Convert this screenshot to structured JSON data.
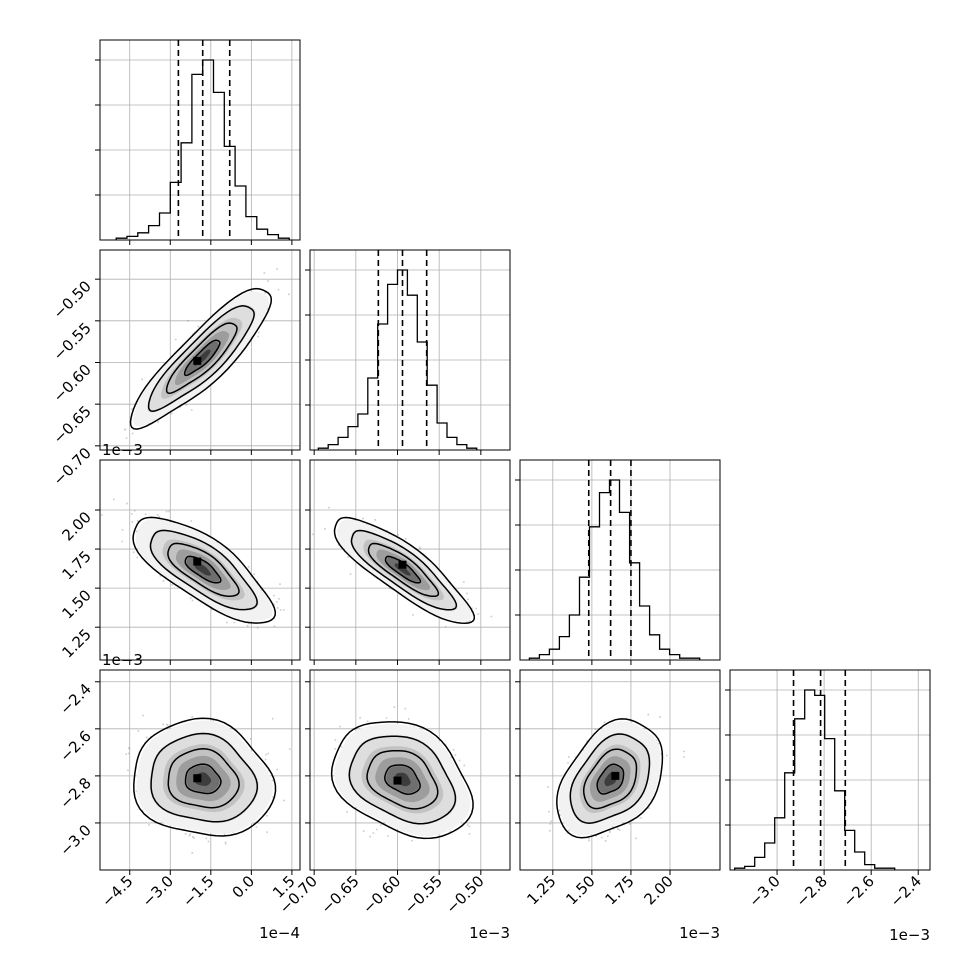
{
  "chart_data": {
    "type": "corner",
    "grid": true,
    "parameters": [
      {
        "range": [
          -5.6,
          1.8
        ],
        "ticks": [
          -4.5,
          -3.0,
          -1.5,
          0.0,
          1.5
        ],
        "tick_labels": [
          "−4.5",
          "−3.0",
          "−1.5",
          "0.0",
          "1.5"
        ],
        "offset_label": "1e−4",
        "quantiles": [
          -2.7,
          -1.8,
          -0.8
        ],
        "hist": [
          1,
          2,
          4,
          8,
          15,
          32,
          54,
          92,
          100,
          82,
          52,
          30,
          13,
          6,
          3,
          1
        ],
        "hist_range": [
          -5.0,
          1.4
        ]
      },
      {
        "range": [
          -0.705,
          -0.465
        ],
        "ticks": [
          -0.7,
          -0.65,
          -0.6,
          -0.55,
          -0.5
        ],
        "tick_labels": [
          "−0.70",
          "−0.65",
          "−0.60",
          "−0.55",
          "−0.50"
        ],
        "offset_label": "1e−3",
        "quantiles": [
          -0.623,
          -0.594,
          -0.565
        ],
        "hist": [
          1,
          3,
          7,
          13,
          20,
          40,
          70,
          92,
          100,
          86,
          60,
          36,
          15,
          7,
          3,
          1
        ],
        "hist_range": [
          -0.695,
          -0.505
        ]
      },
      {
        "range": [
          1.04,
          2.32
        ],
        "ticks": [
          1.25,
          1.5,
          1.75,
          2.0
        ],
        "tick_labels": [
          "1.25",
          "1.50",
          "1.75",
          "2.00"
        ],
        "offset_label": "1e−3",
        "quantiles": [
          1.48,
          1.62,
          1.75
        ],
        "hist": [
          1,
          3,
          6,
          13,
          25,
          46,
          74,
          93,
          100,
          82,
          54,
          30,
          14,
          6,
          3,
          1,
          1
        ],
        "hist_range": [
          1.1,
          2.19
        ]
      },
      {
        "range": [
          -3.2,
          -2.35
        ],
        "ticks": [
          -3.0,
          -2.8,
          -2.6,
          -2.4
        ],
        "tick_labels": [
          "−3.0",
          "−2.8",
          "−2.6",
          "−2.4"
        ],
        "offset_label": "1e−3",
        "quantiles": [
          -2.93,
          -2.815,
          -2.71
        ],
        "hist": [
          1,
          2,
          7,
          15,
          29,
          54,
          84,
          100,
          97,
          73,
          44,
          22,
          10,
          3,
          1,
          1
        ],
        "hist_range": [
          -3.18,
          -2.5
        ]
      }
    ],
    "pairs": [
      {
        "x": 0,
        "y": 1,
        "mean": [
          -1.8,
          -0.594
        ],
        "sd": [
          1.0,
          0.032
        ],
        "corr": 0.88,
        "peak": [
          -2.0,
          -0.598
        ]
      },
      {
        "x": 0,
        "y": 2,
        "mean": [
          -1.8,
          1.62
        ],
        "sd": [
          1.0,
          0.13
        ],
        "corr": -0.75,
        "peak": [
          -2.0,
          1.67
        ]
      },
      {
        "x": 1,
        "y": 2,
        "mean": [
          -0.594,
          1.62
        ],
        "sd": [
          0.032,
          0.13
        ],
        "corr": -0.85,
        "peak": [
          -0.594,
          1.65
        ]
      },
      {
        "x": 0,
        "y": 3,
        "mean": [
          -1.8,
          -2.815
        ],
        "sd": [
          1.0,
          0.095
        ],
        "corr": -0.1,
        "peak": [
          -2.0,
          -2.81
        ]
      },
      {
        "x": 1,
        "y": 3,
        "mean": [
          -0.594,
          -2.815
        ],
        "sd": [
          0.032,
          0.095
        ],
        "corr": -0.3,
        "peak": [
          -0.6,
          -2.82
        ]
      },
      {
        "x": 2,
        "y": 3,
        "mean": [
          1.62,
          -2.815
        ],
        "sd": [
          0.13,
          0.095
        ],
        "corr": 0.38,
        "peak": [
          1.65,
          -2.8
        ]
      }
    ]
  }
}
